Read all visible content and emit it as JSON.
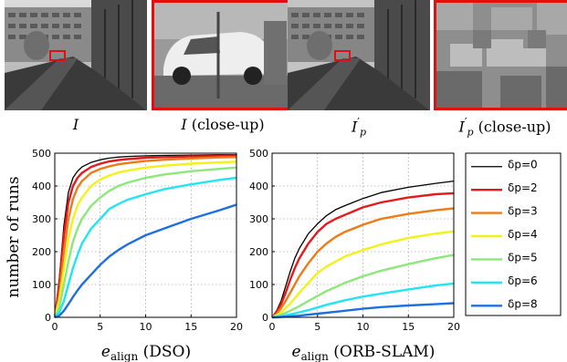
{
  "image_captions": [
    {
      "main": "I",
      "sub": "",
      "prime": "",
      "suffix": ""
    },
    {
      "main": "I",
      "sub": "",
      "prime": "",
      "suffix": " (close-up)"
    },
    {
      "main": "I",
      "sub": "p",
      "prime": "′",
      "suffix": ""
    },
    {
      "main": "I",
      "sub": "p",
      "prime": "′",
      "suffix": " (close-up)"
    }
  ],
  "colors": {
    "highlight_box": "#e01010",
    "series": [
      "#000000",
      "#e41a1c",
      "#ee7a18",
      "#f2f21a",
      "#8ce87a",
      "#22e4f4",
      "#1e6fe0"
    ]
  },
  "chart_data": [
    {
      "type": "line",
      "title": "",
      "ylabel": "number of runs",
      "xlabel_main": "e",
      "xlabel_sub": "align",
      "xlabel_suffix": " (DSO)",
      "xlim": [
        0,
        20
      ],
      "ylim": [
        0,
        500
      ],
      "xticks": [
        0,
        5,
        10,
        15,
        20
      ],
      "yticks": [
        0,
        100,
        200,
        300,
        400,
        500
      ],
      "grid": true,
      "legend": "",
      "x": [
        0,
        0.5,
        1,
        1.5,
        2,
        2.5,
        3,
        4,
        5,
        6,
        7,
        8,
        10,
        12,
        15,
        18,
        20
      ],
      "series": [
        {
          "name": "δp=0",
          "values": [
            0,
            120,
            280,
            380,
            425,
            445,
            458,
            472,
            480,
            485,
            488,
            490,
            492,
            493,
            494,
            495,
            495
          ]
        },
        {
          "name": "δp=2",
          "values": [
            0,
            100,
            250,
            350,
            400,
            425,
            440,
            458,
            468,
            475,
            479,
            482,
            486,
            488,
            490,
            491,
            492
          ]
        },
        {
          "name": "δp=3",
          "values": [
            0,
            70,
            200,
            300,
            360,
            395,
            415,
            440,
            452,
            460,
            466,
            470,
            476,
            480,
            484,
            487,
            488
          ]
        },
        {
          "name": "δp=4",
          "values": [
            0,
            50,
            150,
            240,
            300,
            340,
            365,
            400,
            420,
            432,
            441,
            447,
            456,
            462,
            468,
            472,
            474
          ]
        },
        {
          "name": "δp=5",
          "values": [
            0,
            30,
            100,
            170,
            230,
            270,
            300,
            340,
            365,
            385,
            400,
            410,
            425,
            435,
            445,
            452,
            456
          ]
        },
        {
          "name": "δp=6",
          "values": [
            0,
            15,
            50,
            100,
            150,
            190,
            225,
            270,
            300,
            330,
            345,
            358,
            375,
            390,
            405,
            418,
            425
          ]
        },
        {
          "name": "δp=8",
          "values": [
            0,
            5,
            20,
            40,
            62,
            82,
            100,
            130,
            160,
            185,
            205,
            222,
            250,
            270,
            300,
            325,
            343
          ]
        }
      ]
    },
    {
      "type": "line",
      "title": "",
      "ylabel": "",
      "xlabel_main": "e",
      "xlabel_sub": "align",
      "xlabel_suffix": " (ORB-SLAM)",
      "xlim": [
        0,
        20
      ],
      "ylim": [
        0,
        500
      ],
      "xticks": [
        0,
        5,
        10,
        15,
        20
      ],
      "yticks": [
        0,
        100,
        200,
        300,
        400,
        500
      ],
      "grid": true,
      "legend": "right-outside",
      "x": [
        0,
        0.5,
        1,
        1.5,
        2,
        2.5,
        3,
        4,
        5,
        6,
        7,
        8,
        10,
        12,
        15,
        18,
        20
      ],
      "series": [
        {
          "name": "δp=0",
          "values": [
            0,
            20,
            50,
            95,
            140,
            180,
            210,
            255,
            285,
            310,
            328,
            340,
            362,
            380,
            396,
            408,
            415
          ]
        },
        {
          "name": "δp=2",
          "values": [
            0,
            15,
            40,
            75,
            115,
            150,
            180,
            225,
            260,
            285,
            300,
            312,
            335,
            350,
            365,
            375,
            378
          ]
        },
        {
          "name": "δp=3",
          "values": [
            0,
            10,
            28,
            50,
            75,
            100,
            125,
            165,
            200,
            225,
            245,
            260,
            282,
            300,
            315,
            326,
            332
          ]
        },
        {
          "name": "δp=4",
          "values": [
            0,
            6,
            15,
            28,
            42,
            58,
            75,
            105,
            135,
            155,
            170,
            185,
            205,
            222,
            242,
            255,
            262
          ]
        },
        {
          "name": "δp=5",
          "values": [
            0,
            3,
            8,
            14,
            20,
            27,
            34,
            50,
            65,
            80,
            92,
            105,
            125,
            142,
            162,
            180,
            190
          ]
        },
        {
          "name": "δp=6",
          "values": [
            0,
            1,
            3,
            6,
            9,
            12,
            15,
            22,
            30,
            38,
            45,
            52,
            63,
            72,
            85,
            97,
            103
          ]
        },
        {
          "name": "δp=8",
          "values": [
            0,
            0,
            1,
            2,
            3,
            4,
            5,
            8,
            11,
            14,
            17,
            20,
            26,
            31,
            36,
            40,
            43
          ]
        }
      ]
    }
  ]
}
